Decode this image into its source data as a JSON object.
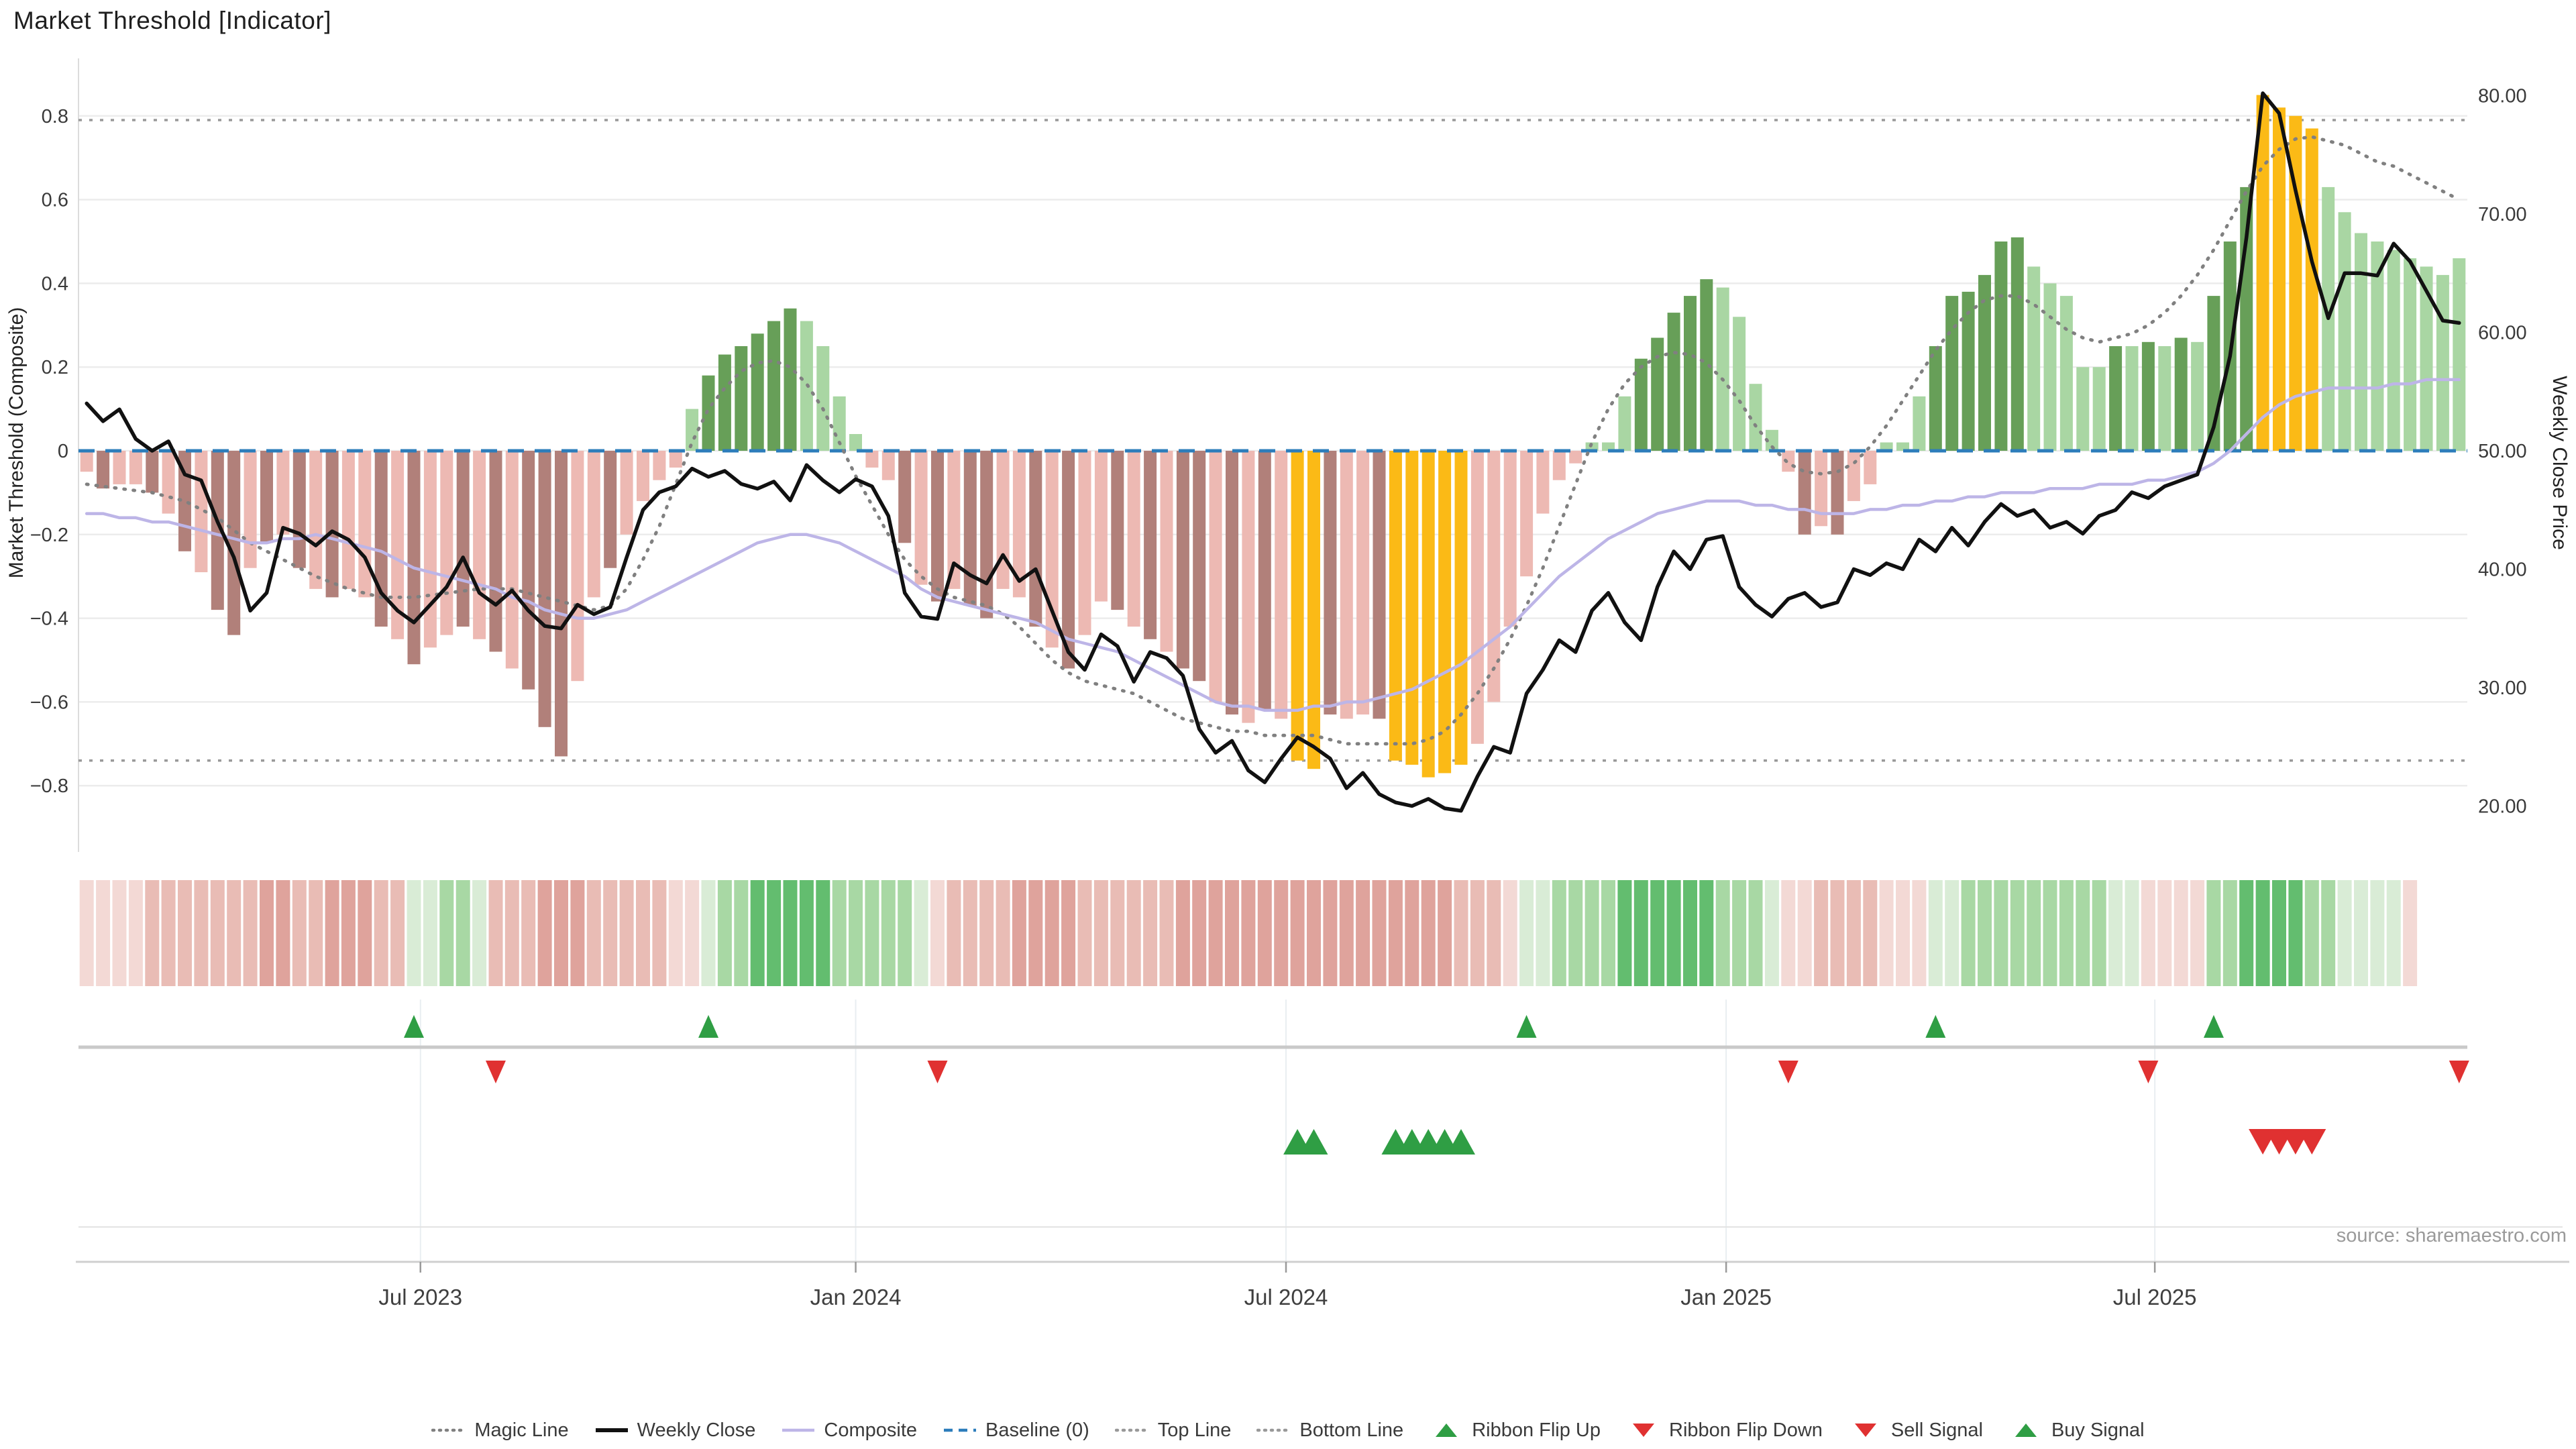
{
  "title": "Market Threshold [Indicator]",
  "source": "source: sharemaestro.com",
  "axes": {
    "left_label": "Market Threshold (Composite)",
    "right_label": "Weekly Close Price",
    "left_ticks": [
      {
        "label": "0.8",
        "v": 0.8
      },
      {
        "label": "0.6",
        "v": 0.6
      },
      {
        "label": "0.4",
        "v": 0.4
      },
      {
        "label": "0.2",
        "v": 0.2
      },
      {
        "label": "0",
        "v": 0.0
      },
      {
        "label": "−0.2",
        "v": -0.2
      },
      {
        "label": "−0.4",
        "v": -0.4
      },
      {
        "label": "−0.6",
        "v": -0.6
      },
      {
        "label": "−0.8",
        "v": -0.8
      }
    ],
    "right_ticks": [
      {
        "label": "80.00",
        "v": 80
      },
      {
        "label": "70.00",
        "v": 70
      },
      {
        "label": "60.00",
        "v": 60
      },
      {
        "label": "50.00",
        "v": 50
      },
      {
        "label": "40.00",
        "v": 40
      },
      {
        "label": "30.00",
        "v": 30
      },
      {
        "label": "20.00",
        "v": 20
      }
    ],
    "x_ticks": [
      {
        "label": "Jul 2023",
        "week": 20.9
      },
      {
        "label": "Jan 2024",
        "week": 47.5
      },
      {
        "label": "Jul 2024",
        "week": 73.8
      },
      {
        "label": "Jan 2025",
        "week": 100.7
      },
      {
        "label": "Jul 2025",
        "week": 126.9
      }
    ]
  },
  "chart_data": {
    "type": "bar+line",
    "title": "Market Threshold [Indicator]",
    "xlabel": "",
    "ylabel_left": "Market Threshold (Composite)",
    "ylabel_right": "Weekly Close Price",
    "weeks": 146,
    "composite_axis_range": [
      -0.96,
      0.94
    ],
    "price_axis_range": [
      16,
      84
    ],
    "grid": true,
    "legend_position": "bottom",
    "baseline": 0.0,
    "top_line": 0.79,
    "bottom_line": -0.74,
    "bars": [
      -0.05,
      -0.09,
      -0.08,
      -0.08,
      -0.1,
      -0.15,
      -0.24,
      -0.29,
      -0.38,
      -0.44,
      -0.28,
      -0.22,
      -0.2,
      -0.28,
      -0.33,
      -0.35,
      -0.33,
      -0.35,
      -0.42,
      -0.45,
      -0.51,
      -0.47,
      -0.44,
      -0.42,
      -0.45,
      -0.48,
      -0.52,
      -0.57,
      -0.66,
      -0.73,
      -0.55,
      -0.35,
      -0.28,
      -0.2,
      -0.12,
      -0.07,
      -0.04,
      0.1,
      0.18,
      0.23,
      0.25,
      0.28,
      0.31,
      0.34,
      0.31,
      0.25,
      0.13,
      0.04,
      -0.04,
      -0.07,
      -0.22,
      -0.32,
      -0.36,
      -0.33,
      -0.37,
      -0.4,
      -0.33,
      -0.35,
      -0.42,
      -0.47,
      -0.52,
      -0.44,
      -0.36,
      -0.38,
      -0.42,
      -0.45,
      -0.48,
      -0.52,
      -0.55,
      -0.6,
      -0.63,
      -0.65,
      -0.62,
      -0.64,
      -0.74,
      -0.76,
      -0.63,
      -0.64,
      -0.63,
      -0.64,
      -0.74,
      -0.75,
      -0.78,
      -0.77,
      -0.75,
      -0.7,
      -0.6,
      -0.42,
      -0.3,
      -0.15,
      -0.07,
      -0.03,
      0.02,
      0.02,
      0.13,
      0.22,
      0.27,
      0.33,
      0.37,
      0.41,
      0.39,
      0.32,
      0.16,
      0.05,
      -0.05,
      -0.2,
      -0.18,
      -0.2,
      -0.12,
      -0.08,
      0.02,
      0.02,
      0.13,
      0.25,
      0.37,
      0.38,
      0.42,
      0.5,
      0.51,
      0.44,
      0.4,
      0.37,
      0.2,
      0.2,
      0.25,
      0.25,
      0.26,
      0.25,
      0.27,
      0.26,
      0.37,
      0.5,
      0.63,
      0.85,
      0.82,
      0.8,
      0.77,
      0.63,
      0.57,
      0.52,
      0.5,
      0.48,
      0.46,
      0.44,
      0.42,
      0.46
    ],
    "bar_tones": "pPppPpPpPPpPpPpPppPpPppPpPpPPPppPpppplLLLLLLllllppPpPpPPppPpPppPpPpPPpPpPpggPppPgggggppppppplllLLLLLllllpPpPpplllLLLLLLlllllLlLlLlLLLgggglllllllll",
    "weekly_close": [
      54.0,
      52.5,
      53.5,
      51.0,
      50.0,
      50.8,
      48.0,
      47.5,
      44.0,
      41.0,
      36.5,
      38.0,
      43.5,
      43.0,
      42.0,
      43.2,
      42.5,
      41.0,
      38.0,
      36.5,
      35.5,
      37.0,
      38.5,
      41.0,
      38.0,
      37.0,
      38.2,
      36.5,
      35.2,
      35.0,
      37.0,
      36.2,
      36.8,
      41.0,
      45.0,
      46.5,
      47.0,
      48.5,
      47.8,
      48.3,
      47.2,
      46.8,
      47.4,
      45.8,
      48.8,
      47.5,
      46.5,
      47.6,
      47.0,
      44.5,
      38.0,
      36.0,
      35.8,
      40.5,
      39.5,
      38.8,
      41.2,
      39.0,
      40.0,
      36.5,
      33.0,
      31.5,
      34.5,
      33.5,
      30.5,
      33.0,
      32.5,
      31.0,
      26.5,
      24.5,
      25.5,
      23.0,
      22.0,
      24.0,
      25.8,
      25.0,
      24.0,
      21.5,
      22.8,
      21.0,
      20.3,
      20.0,
      20.6,
      19.8,
      19.6,
      22.5,
      25.0,
      24.5,
      29.5,
      31.5,
      34.0,
      33.0,
      36.5,
      38.0,
      35.5,
      34.0,
      38.5,
      41.5,
      40.0,
      42.5,
      42.8,
      38.5,
      37.0,
      36.0,
      37.5,
      38.0,
      36.8,
      37.2,
      40.0,
      39.5,
      40.5,
      40.0,
      42.5,
      41.5,
      43.5,
      42.0,
      44.0,
      45.5,
      44.5,
      45.0,
      43.5,
      44.0,
      43.0,
      44.5,
      45.0,
      46.5,
      46.0,
      47.0,
      47.5,
      48.0,
      52.0,
      58.0,
      68.0,
      80.2,
      78.5,
      72.0,
      66.0,
      61.2,
      65.0,
      65.0,
      64.8,
      67.5,
      66.0,
      63.5,
      61.0,
      60.8
    ],
    "composite": [
      -0.15,
      -0.15,
      -0.16,
      -0.16,
      -0.17,
      -0.17,
      -0.18,
      -0.19,
      -0.2,
      -0.21,
      -0.22,
      -0.22,
      -0.21,
      -0.21,
      -0.2,
      -0.21,
      -0.22,
      -0.23,
      -0.24,
      -0.26,
      -0.28,
      -0.29,
      -0.3,
      -0.31,
      -0.32,
      -0.33,
      -0.35,
      -0.36,
      -0.38,
      -0.39,
      -0.4,
      -0.4,
      -0.39,
      -0.38,
      -0.36,
      -0.34,
      -0.32,
      -0.3,
      -0.28,
      -0.26,
      -0.24,
      -0.22,
      -0.21,
      -0.2,
      -0.2,
      -0.21,
      -0.22,
      -0.24,
      -0.26,
      -0.28,
      -0.3,
      -0.33,
      -0.35,
      -0.36,
      -0.37,
      -0.38,
      -0.39,
      -0.4,
      -0.41,
      -0.43,
      -0.45,
      -0.46,
      -0.47,
      -0.48,
      -0.5,
      -0.52,
      -0.54,
      -0.56,
      -0.58,
      -0.6,
      -0.61,
      -0.61,
      -0.62,
      -0.62,
      -0.62,
      -0.61,
      -0.61,
      -0.6,
      -0.6,
      -0.59,
      -0.58,
      -0.57,
      -0.55,
      -0.53,
      -0.51,
      -0.48,
      -0.45,
      -0.42,
      -0.38,
      -0.34,
      -0.3,
      -0.27,
      -0.24,
      -0.21,
      -0.19,
      -0.17,
      -0.15,
      -0.14,
      -0.13,
      -0.12,
      -0.12,
      -0.12,
      -0.13,
      -0.13,
      -0.14,
      -0.14,
      -0.15,
      -0.15,
      -0.15,
      -0.14,
      -0.14,
      -0.13,
      -0.13,
      -0.12,
      -0.12,
      -0.11,
      -0.11,
      -0.1,
      -0.1,
      -0.1,
      -0.09,
      -0.09,
      -0.09,
      -0.08,
      -0.08,
      -0.08,
      -0.07,
      -0.07,
      -0.06,
      -0.05,
      -0.03,
      0.0,
      0.04,
      0.08,
      0.11,
      0.13,
      0.14,
      0.15,
      0.15,
      0.15,
      0.15,
      0.16,
      0.16,
      0.17,
      0.17,
      0.17
    ],
    "magic": [
      -0.08,
      -0.085,
      -0.09,
      -0.095,
      -0.1,
      -0.11,
      -0.12,
      -0.14,
      -0.16,
      -0.19,
      -0.22,
      -0.24,
      -0.26,
      -0.28,
      -0.3,
      -0.315,
      -0.33,
      -0.34,
      -0.35,
      -0.35,
      -0.35,
      -0.345,
      -0.34,
      -0.335,
      -0.33,
      -0.33,
      -0.33,
      -0.34,
      -0.35,
      -0.36,
      -0.37,
      -0.38,
      -0.37,
      -0.33,
      -0.26,
      -0.18,
      -0.08,
      0.02,
      0.1,
      0.15,
      0.19,
      0.21,
      0.215,
      0.2,
      0.16,
      0.1,
      0.02,
      -0.06,
      -0.13,
      -0.2,
      -0.26,
      -0.3,
      -0.33,
      -0.35,
      -0.36,
      -0.37,
      -0.39,
      -0.42,
      -0.46,
      -0.5,
      -0.53,
      -0.55,
      -0.56,
      -0.57,
      -0.58,
      -0.6,
      -0.62,
      -0.64,
      -0.65,
      -0.66,
      -0.67,
      -0.67,
      -0.68,
      -0.68,
      -0.68,
      -0.68,
      -0.69,
      -0.7,
      -0.7,
      -0.7,
      -0.7,
      -0.7,
      -0.69,
      -0.67,
      -0.63,
      -0.58,
      -0.52,
      -0.45,
      -0.37,
      -0.28,
      -0.18,
      -0.08,
      0.02,
      0.1,
      0.16,
      0.2,
      0.225,
      0.235,
      0.23,
      0.21,
      0.17,
      0.12,
      0.06,
      0.01,
      -0.03,
      -0.05,
      -0.055,
      -0.05,
      -0.03,
      0.01,
      0.06,
      0.12,
      0.18,
      0.24,
      0.29,
      0.33,
      0.36,
      0.37,
      0.37,
      0.35,
      0.32,
      0.29,
      0.27,
      0.26,
      0.27,
      0.28,
      0.3,
      0.33,
      0.37,
      0.42,
      0.48,
      0.55,
      0.62,
      0.68,
      0.72,
      0.745,
      0.75,
      0.74,
      0.73,
      0.71,
      0.69,
      0.68,
      0.66,
      0.64,
      0.62,
      0.6
    ],
    "ribbon": [
      -1,
      -1,
      -1,
      -1,
      -2,
      -2,
      -2,
      -2,
      -2,
      -2,
      -2,
      -3,
      -3,
      -2,
      -2,
      -3,
      -3,
      -3,
      -2,
      -2,
      1,
      1,
      2,
      2,
      1,
      -2,
      -2,
      -2,
      -3,
      -3,
      -3,
      -2,
      -2,
      -2,
      -2,
      -2,
      -1,
      -1,
      1,
      2,
      2,
      3,
      3,
      3,
      3,
      3,
      2,
      2,
      2,
      2,
      2,
      1,
      -1,
      -2,
      -2,
      -2,
      -2,
      -3,
      -3,
      -3,
      -3,
      -2,
      -2,
      -2,
      -2,
      -2,
      -2,
      -3,
      -3,
      -3,
      -3,
      -3,
      -3,
      -3,
      -3,
      -3,
      -3,
      -3,
      -3,
      -3,
      -3,
      -3,
      -3,
      -3,
      -2,
      -2,
      -2,
      -1,
      1,
      1,
      2,
      2,
      2,
      2,
      3,
      3,
      3,
      3,
      3,
      3,
      2,
      2,
      2,
      1,
      -1,
      -1,
      -2,
      -2,
      -2,
      -2,
      -1,
      -1,
      -1,
      1,
      1,
      2,
      2,
      2,
      2,
      2,
      2,
      2,
      2,
      2,
      1,
      1,
      -1,
      -1,
      -1,
      -1,
      2,
      2,
      3,
      3,
      3,
      3,
      2,
      2,
      1,
      1,
      1,
      1,
      -1
    ],
    "signals": {
      "ribbon_flip_up_weeks": [
        20,
        38,
        88,
        113,
        130
      ],
      "ribbon_flip_down_weeks": [
        25,
        52,
        104,
        126,
        145
      ],
      "buy_weeks": [
        74,
        75,
        80,
        81,
        82,
        83,
        84
      ],
      "sell_weeks": [
        133,
        134,
        135,
        136
      ]
    }
  },
  "colors": {
    "bar_pink_light": "#edb9b3",
    "bar_pink_dark": "#b1807a",
    "bar_green_light": "#a9d6a3",
    "bar_green_dark": "#679f58",
    "bar_gold": "#fbba16",
    "weekly_close_line": "#111111",
    "composite_line": "#bdb5e7",
    "magic_line": "#808080",
    "baseline": "#2d7dbb",
    "guide_line": "#999999",
    "grid": "#ececec",
    "spine": "#dcdcdc",
    "flip_line": "#c9c9c9",
    "panel_grid": "#e9eef1",
    "sub_line": "#e3e3e3",
    "axis_line": "#cfcfcf",
    "tick_text": "#3a3a3a",
    "marker_up": "#2f9e44",
    "marker_down": "#e03131",
    "ribbon_shades": {
      "-3": "#dfa39c",
      "-2": "#e9bcb5",
      "-1": "#f3d9d5",
      "1": "#d9ecd6",
      "2": "#a8d8a4",
      "3": "#63bd6f"
    }
  },
  "legend": {
    "items": [
      {
        "label": "Magic Line",
        "swatch": "dotted",
        "color": "#808080"
      },
      {
        "label": "Weekly Close",
        "swatch": "solid-thick",
        "color": "#111111"
      },
      {
        "label": "Composite",
        "swatch": "solid",
        "color": "#bdb5e7"
      },
      {
        "label": "Baseline (0)",
        "swatch": "dashed",
        "color": "#2d7dbb"
      },
      {
        "label": "Top Line",
        "swatch": "dotted",
        "color": "#999999"
      },
      {
        "label": "Bottom Line",
        "swatch": "dotted",
        "color": "#999999"
      },
      {
        "label": "Ribbon Flip Up",
        "swatch": "triangle-up",
        "color": "#2f9e44"
      },
      {
        "label": "Ribbon Flip Down",
        "swatch": "triangle-down",
        "color": "#e03131"
      },
      {
        "label": "Sell Signal",
        "swatch": "triangle-down",
        "color": "#e03131"
      },
      {
        "label": "Buy Signal",
        "swatch": "triangle-up",
        "color": "#2f9e44"
      }
    ]
  }
}
